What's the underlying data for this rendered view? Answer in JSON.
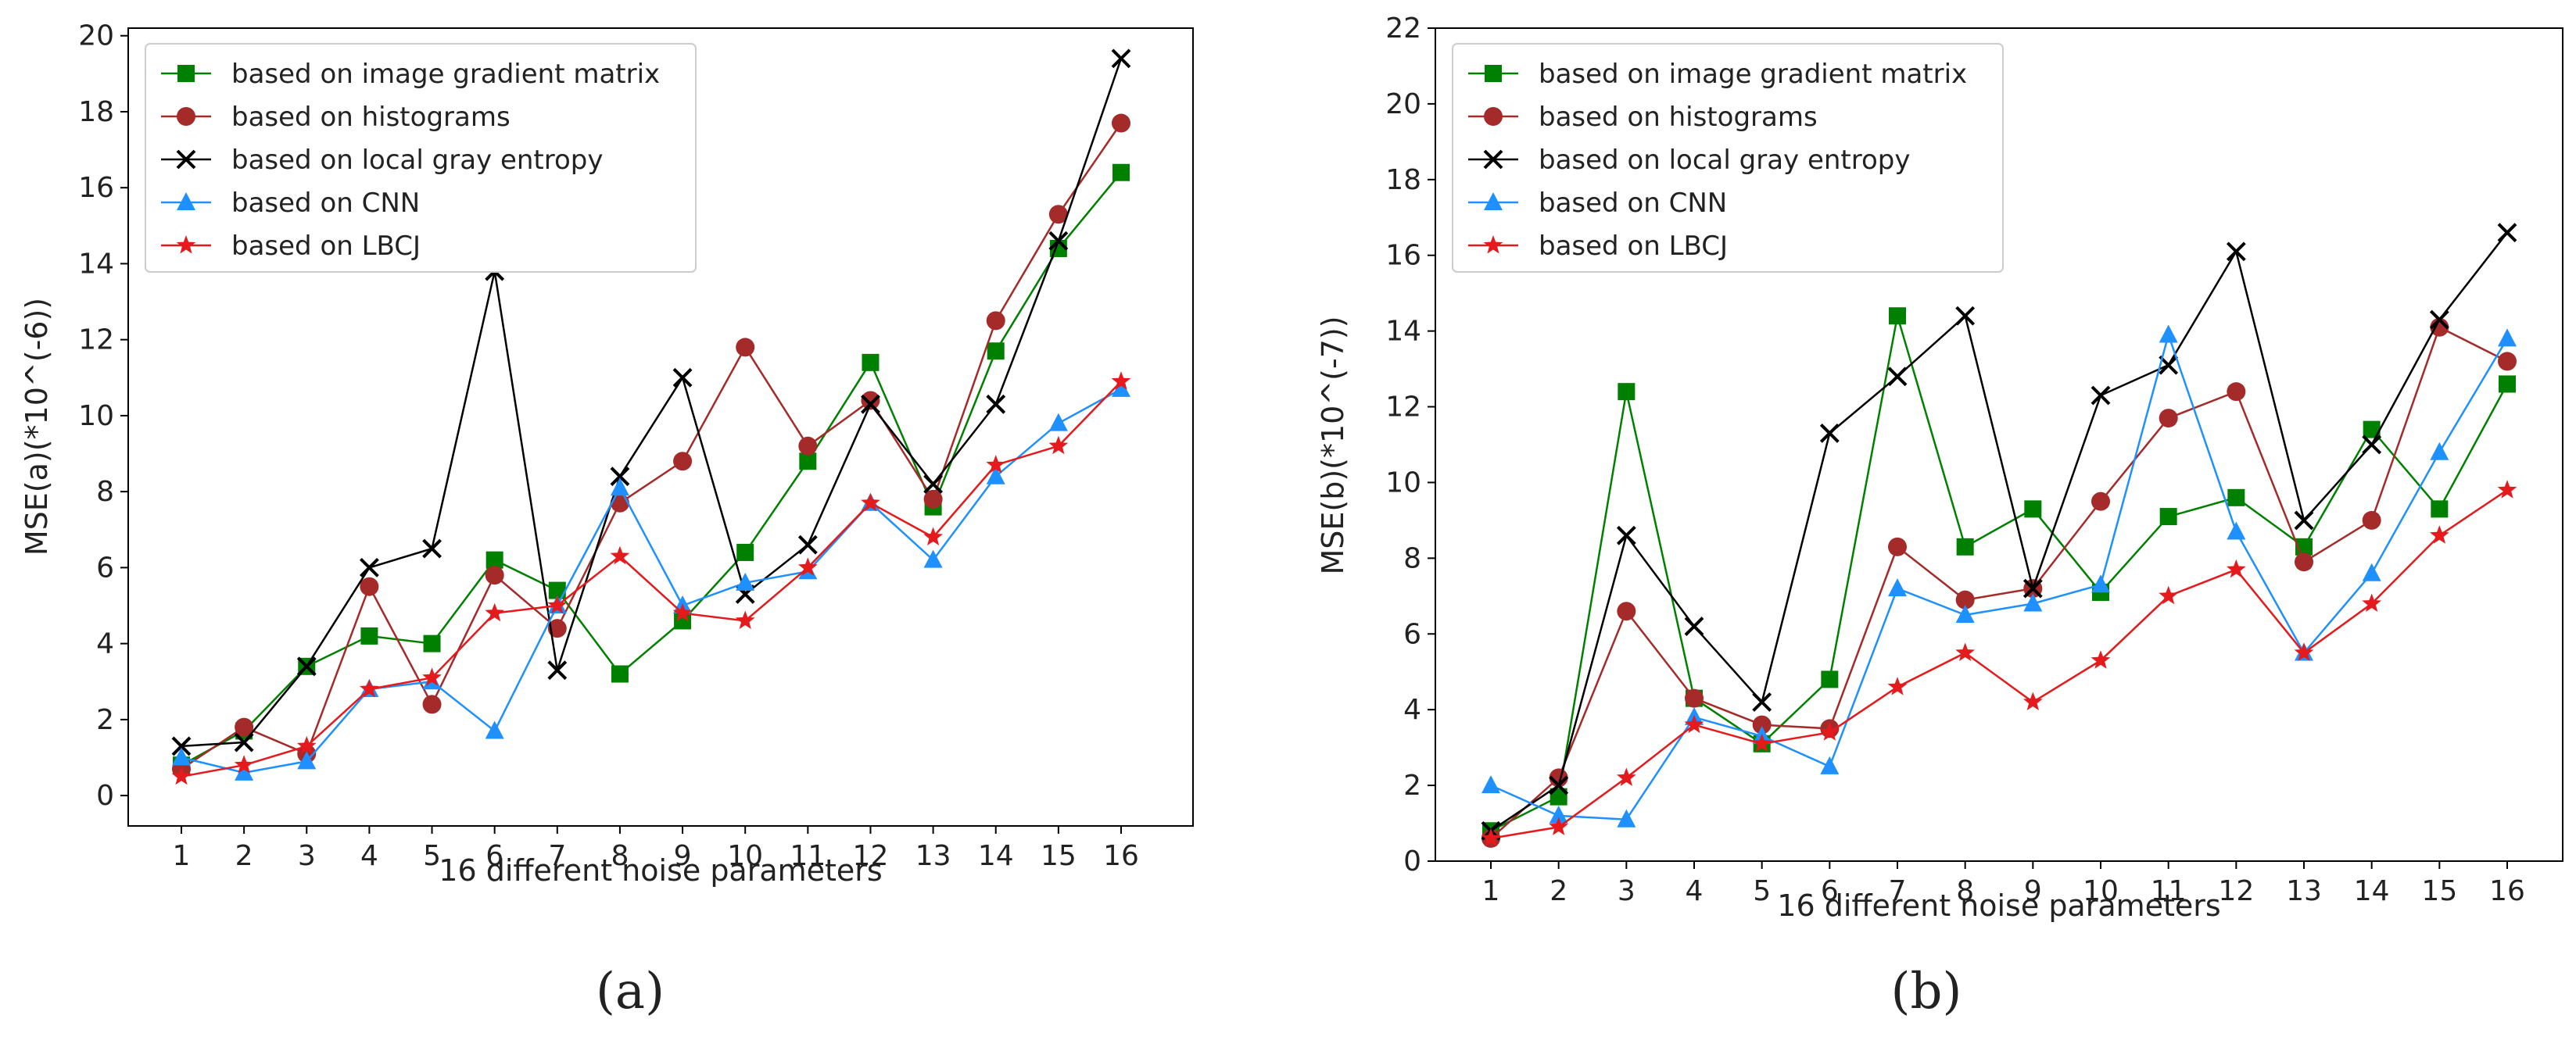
{
  "chart_data": [
    {
      "panel": "(a)",
      "type": "line",
      "xlabel": "16 different noise parameters",
      "ylabel": "MSE(a)(*10^(-6))",
      "categories": [
        "1",
        "2",
        "3",
        "4",
        "5",
        "6",
        "7",
        "8",
        "9",
        "10",
        "11",
        "12",
        "13",
        "14",
        "15",
        "16"
      ],
      "ylim": [
        -0.8,
        20.2
      ],
      "yticks": [
        0,
        2,
        4,
        6,
        8,
        10,
        12,
        14,
        16,
        18,
        20
      ],
      "legend_position": "top-left",
      "series": [
        {
          "name": "based on image gradient matrix",
          "color": "#008000",
          "marker": "square",
          "values": [
            0.8,
            1.7,
            3.4,
            4.2,
            4.0,
            6.2,
            5.4,
            3.2,
            4.6,
            6.4,
            8.8,
            11.4,
            7.6,
            11.7,
            14.4,
            16.4
          ]
        },
        {
          "name": "based on histograms",
          "color": "#a52a2a",
          "marker": "circle",
          "values": [
            0.7,
            1.8,
            1.1,
            5.5,
            2.4,
            5.8,
            4.4,
            7.7,
            8.8,
            11.8,
            9.2,
            10.4,
            7.8,
            12.5,
            15.3,
            17.7
          ]
        },
        {
          "name": "based on local gray entropy",
          "color": "#000000",
          "marker": "x",
          "values": [
            1.3,
            1.4,
            3.4,
            6.0,
            6.5,
            13.8,
            3.3,
            8.4,
            11.0,
            5.3,
            6.6,
            10.3,
            8.2,
            10.3,
            14.6,
            19.4
          ]
        },
        {
          "name": "based on CNN",
          "color": "#1e90ff",
          "marker": "triangle",
          "values": [
            1.0,
            0.6,
            0.9,
            2.8,
            3.0,
            1.7,
            5.0,
            8.1,
            5.0,
            5.6,
            5.9,
            7.7,
            6.2,
            8.4,
            9.8,
            10.7
          ]
        },
        {
          "name": "based on LBCJ",
          "color": "#e41a1c",
          "marker": "star",
          "values": [
            0.5,
            0.8,
            1.3,
            2.8,
            3.1,
            4.8,
            5.0,
            6.3,
            4.8,
            4.6,
            6.0,
            7.7,
            6.8,
            8.7,
            9.2,
            10.9
          ]
        }
      ]
    },
    {
      "panel": "(b)",
      "type": "line",
      "xlabel": "16 different noise parameters",
      "ylabel": "MSE(b)(*10^(-7))",
      "categories": [
        "1",
        "2",
        "3",
        "4",
        "5",
        "6",
        "7",
        "8",
        "9",
        "10",
        "11",
        "12",
        "13",
        "14",
        "15",
        "16"
      ],
      "ylim": [
        0,
        22
      ],
      "yticks": [
        0,
        2,
        4,
        6,
        8,
        10,
        12,
        14,
        16,
        18,
        20,
        22
      ],
      "legend_position": "top-left",
      "series": [
        {
          "name": "based on image gradient matrix",
          "color": "#008000",
          "marker": "square",
          "values": [
            0.8,
            1.7,
            12.4,
            4.3,
            3.1,
            4.8,
            14.4,
            8.3,
            9.3,
            7.1,
            9.1,
            9.6,
            8.3,
            11.4,
            9.3,
            12.6
          ]
        },
        {
          "name": "based on histograms",
          "color": "#a52a2a",
          "marker": "circle",
          "values": [
            0.6,
            2.2,
            6.6,
            4.3,
            3.6,
            3.5,
            8.3,
            6.9,
            7.2,
            9.5,
            11.7,
            12.4,
            7.9,
            9.0,
            14.1,
            13.2
          ]
        },
        {
          "name": "based on local gray entropy",
          "color": "#000000",
          "marker": "x",
          "values": [
            0.8,
            2.0,
            8.6,
            6.2,
            4.2,
            11.3,
            12.8,
            14.4,
            7.2,
            12.3,
            13.1,
            16.1,
            9.0,
            11.0,
            14.3,
            16.6
          ]
        },
        {
          "name": "based on CNN",
          "color": "#1e90ff",
          "marker": "triangle",
          "values": [
            2.0,
            1.2,
            1.1,
            3.8,
            3.3,
            2.5,
            7.2,
            6.5,
            6.8,
            7.3,
            13.9,
            8.7,
            5.5,
            7.6,
            10.8,
            13.8
          ]
        },
        {
          "name": "based on LBCJ",
          "color": "#e41a1c",
          "marker": "star",
          "values": [
            0.6,
            0.9,
            2.2,
            3.6,
            3.1,
            3.4,
            4.6,
            5.5,
            4.2,
            5.3,
            7.0,
            7.7,
            5.5,
            6.8,
            8.6,
            9.8
          ]
        }
      ]
    }
  ]
}
